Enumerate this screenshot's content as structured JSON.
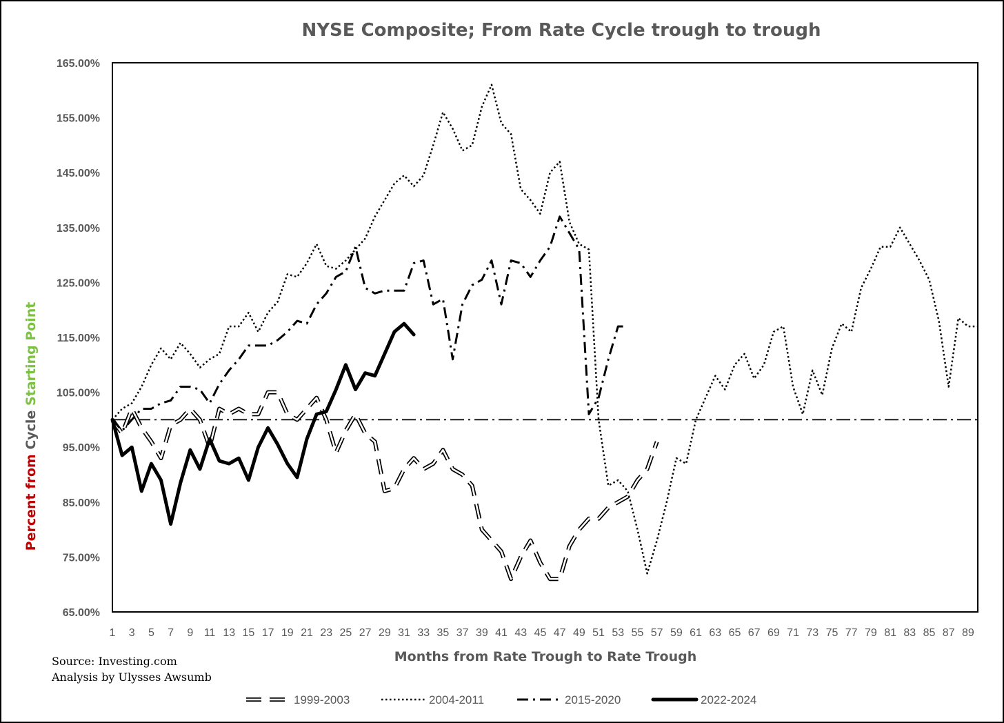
{
  "chart_data": {
    "type": "line",
    "title": "NYSE Composite; From Rate Cycle trough to trough",
    "xlabel": "Months from Rate Trough to Rate Trough",
    "ylabel_parts": [
      {
        "text": "Percent from ",
        "color": "#c00000"
      },
      {
        "text": "Cycle ",
        "color": "#595959"
      },
      {
        "text": "Starting Point",
        "color": "#7cc142"
      }
    ],
    "ylim": [
      65,
      165
    ],
    "xlim": [
      1,
      90
    ],
    "y_ticks": [
      65,
      75,
      85,
      95,
      105,
      115,
      125,
      135,
      145,
      155,
      165
    ],
    "y_tick_labels": [
      "65.00%",
      "75.00%",
      "85.00%",
      "95.00%",
      "105.00%",
      "115.00%",
      "125.00%",
      "135.00%",
      "145.00%",
      "155.00%",
      "165.00%"
    ],
    "x_tick_labels": [
      "1",
      "3",
      "5",
      "7",
      "9",
      "11",
      "13",
      "15",
      "17",
      "19",
      "21",
      "23",
      "25",
      "27",
      "29",
      "31",
      "33",
      "35",
      "37",
      "39",
      "41",
      "43",
      "45",
      "47",
      "49",
      "51",
      "53",
      "55",
      "57",
      "59",
      "61",
      "63",
      "65",
      "67",
      "69",
      "71",
      "73",
      "75",
      "77",
      "79",
      "81",
      "83",
      "85",
      "87",
      "89"
    ],
    "x_ticks": [
      1,
      3,
      5,
      7,
      9,
      11,
      13,
      15,
      17,
      19,
      21,
      23,
      25,
      27,
      29,
      31,
      33,
      35,
      37,
      39,
      41,
      43,
      45,
      47,
      49,
      51,
      53,
      55,
      57,
      59,
      61,
      63,
      65,
      67,
      69,
      71,
      73,
      75,
      77,
      79,
      81,
      83,
      85,
      87,
      89
    ],
    "grid": false,
    "legend_position": "bottom",
    "reference_line": {
      "y": 100,
      "style": "dash-dot"
    },
    "series": [
      {
        "name": "1999-2003",
        "style": "outline-dash",
        "x": [
          1,
          2,
          3,
          4,
          5,
          6,
          7,
          8,
          9,
          10,
          11,
          12,
          13,
          14,
          15,
          16,
          17,
          18,
          19,
          20,
          21,
          22,
          23,
          24,
          25,
          26,
          27,
          28,
          29,
          30,
          31,
          32,
          33,
          34,
          35,
          36,
          37,
          38,
          39,
          40,
          41,
          42,
          43,
          44,
          45,
          46,
          47,
          48,
          49,
          50,
          51,
          52,
          53,
          54,
          55,
          56,
          57
        ],
        "values": [
          100,
          97.5,
          102,
          98.5,
          96,
          93,
          99,
          100,
          102,
          100,
          95,
          102,
          101,
          102,
          101,
          101,
          105,
          105,
          101,
          100,
          102,
          104,
          100,
          94,
          98,
          101,
          97.5,
          96,
          87,
          87.5,
          91,
          93,
          91,
          92,
          94.5,
          91,
          90,
          88,
          80,
          78,
          76,
          71,
          75,
          78,
          74,
          71,
          71,
          77,
          80,
          82,
          82,
          84,
          85,
          86,
          89,
          91,
          96
        ]
      },
      {
        "name": "2004-2011",
        "style": "dotted",
        "x": [
          1,
          2,
          3,
          4,
          5,
          6,
          7,
          8,
          9,
          10,
          11,
          12,
          13,
          14,
          15,
          16,
          17,
          18,
          19,
          20,
          21,
          22,
          23,
          24,
          25,
          26,
          27,
          28,
          29,
          30,
          31,
          32,
          33,
          34,
          35,
          36,
          37,
          38,
          39,
          40,
          41,
          42,
          43,
          44,
          45,
          46,
          47,
          48,
          49,
          50,
          51,
          52,
          53,
          54,
          55,
          56,
          57,
          58,
          59,
          60,
          61,
          62,
          63,
          64,
          65,
          66,
          67,
          68,
          69,
          70,
          71,
          72,
          73,
          74,
          75,
          76,
          77,
          78,
          79,
          80,
          81,
          82,
          83,
          84,
          85,
          86,
          87,
          88,
          89,
          90
        ],
        "values": [
          100,
          102,
          103,
          106,
          110,
          113,
          111,
          114,
          112,
          109.5,
          111,
          112,
          117,
          117,
          119.5,
          116,
          119.5,
          121.5,
          126.5,
          126,
          128.5,
          132,
          128,
          127.5,
          129,
          131,
          133,
          137,
          140,
          143,
          144.5,
          142.5,
          144.5,
          150,
          156,
          153,
          149,
          150,
          157,
          161,
          154,
          152,
          142,
          140,
          137.5,
          145,
          147,
          136,
          132,
          131,
          100,
          88,
          89,
          87,
          80,
          72,
          78,
          85,
          93,
          92,
          100,
          104,
          108,
          105.5,
          110,
          112,
          107.5,
          110,
          116,
          117,
          106,
          101,
          109,
          104.5,
          113,
          117.5,
          116,
          124,
          127.5,
          131.5,
          131.5,
          135,
          132,
          129,
          125.5,
          118,
          106,
          118.5,
          117,
          117
        ]
      },
      {
        "name": "2015-2020",
        "style": "dash-dot",
        "x": [
          1,
          2,
          3,
          4,
          5,
          6,
          7,
          8,
          9,
          10,
          11,
          12,
          13,
          14,
          15,
          16,
          17,
          18,
          19,
          20,
          21,
          22,
          23,
          24,
          25,
          26,
          27,
          28,
          29,
          30,
          31,
          32,
          33,
          34,
          35,
          36,
          37,
          38,
          39,
          40,
          41,
          42,
          43,
          44,
          45,
          46,
          47,
          48,
          49,
          50,
          51,
          52,
          53,
          54
        ],
        "values": [
          100,
          98,
          100,
          102,
          102,
          103,
          103.5,
          106,
          106,
          105.5,
          103,
          106.5,
          109,
          111,
          113.5,
          113.5,
          113.5,
          114.5,
          116,
          118,
          117.5,
          121,
          123,
          126,
          127,
          131.5,
          124,
          123,
          123.5,
          123.5,
          123.5,
          128.5,
          129,
          121,
          122,
          111,
          121,
          124.5,
          125.5,
          129,
          121,
          129,
          128.5,
          126,
          129,
          131.5,
          137,
          134,
          131,
          101,
          104,
          111,
          117,
          117
        ]
      },
      {
        "name": "2022-2024",
        "style": "solid-thick",
        "x": [
          1,
          2,
          3,
          4,
          5,
          6,
          7,
          8,
          9,
          10,
          11,
          12,
          13,
          14,
          15,
          16,
          17,
          18,
          19,
          20,
          21,
          22,
          23,
          24,
          25,
          26,
          27,
          28,
          29,
          30,
          31,
          32
        ],
        "values": [
          100,
          93.5,
          95,
          87,
          92,
          89,
          81,
          88.5,
          94.5,
          91,
          96.5,
          92.5,
          92,
          93,
          89,
          95,
          98.5,
          95.5,
          92,
          89.5,
          96.5,
          101,
          101.5,
          105.5,
          110,
          105.5,
          108.5,
          108,
          112,
          116,
          117.5,
          115.5
        ]
      }
    ]
  },
  "source_lines": [
    "Source: Investing.com",
    "Analysis by Ulysses Awsumb"
  ]
}
